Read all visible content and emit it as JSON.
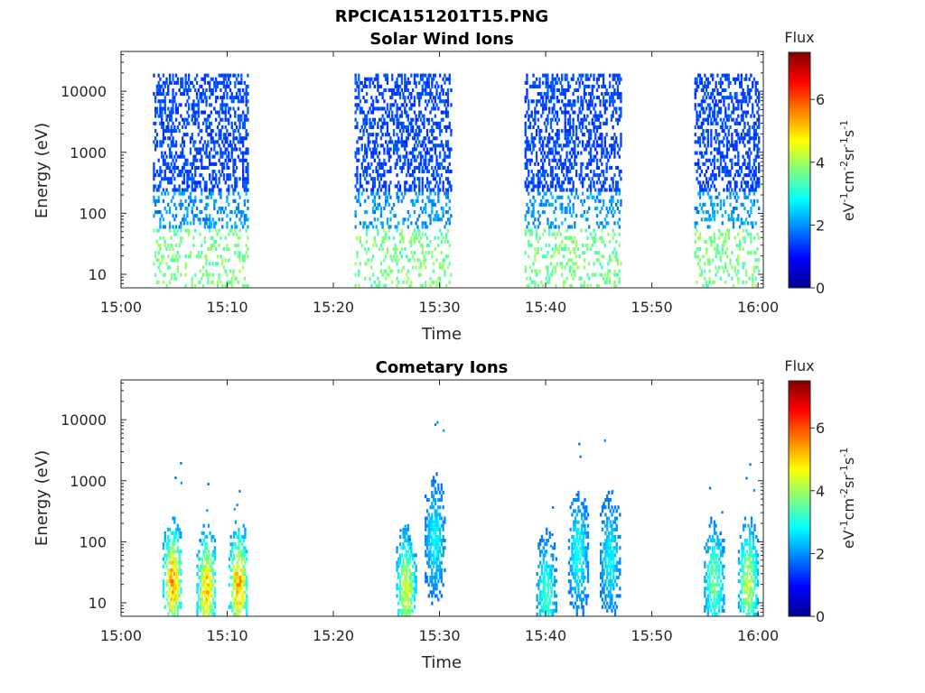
{
  "figure": {
    "title": "RPCICA151201T15.PNG"
  },
  "colorbar": {
    "label": "Flux",
    "units": "eV-1cm-2sr-1s-1",
    "range": [
      0,
      7.5
    ],
    "ticks": [
      "0",
      "2",
      "4",
      "6"
    ],
    "colormap": "jet"
  },
  "chart_data": [
    {
      "type": "heatmap",
      "title": "Solar Wind Ions",
      "xlabel": "Time",
      "ylabel": "Energy (eV)",
      "x_ticks": [
        "15:00",
        "15:10",
        "15:20",
        "15:30",
        "15:40",
        "15:50",
        "16:00"
      ],
      "xlim_minutes": [
        0,
        60.5
      ],
      "y_ticks": [
        "10",
        "100",
        "1000",
        "10000"
      ],
      "ylim": [
        6,
        45000
      ],
      "yscale": "log",
      "bursts": [
        {
          "start": "15:03",
          "end": "15:12"
        },
        {
          "start": "15:22",
          "end": "15:31"
        },
        {
          "start": "15:38",
          "end": "15:47"
        },
        {
          "start": "15:54",
          "end": "16:00"
        }
      ],
      "dominant_energy_range_eV": [
        200,
        15000
      ],
      "dominant_flux": 1.2,
      "low_energy_flux": 3.2
    },
    {
      "type": "heatmap",
      "title": "Cometary Ions",
      "xlabel": "Time",
      "ylabel": "Energy (eV)",
      "x_ticks": [
        "15:00",
        "15:10",
        "15:20",
        "15:30",
        "15:40",
        "15:50",
        "16:00"
      ],
      "xlim_minutes": [
        0,
        60.5
      ],
      "y_ticks": [
        "10",
        "100",
        "1000",
        "10000"
      ],
      "ylim": [
        6,
        45000
      ],
      "yscale": "log",
      "bursts": [
        {
          "center": "15:04.8",
          "peak_flux": 6.0,
          "peak_energy_eV": 20
        },
        {
          "center": "15:08.0",
          "peak_flux": 5.8,
          "peak_energy_eV": 15
        },
        {
          "center": "15:11.0",
          "peak_flux": 6.0,
          "peak_energy_eV": 18
        },
        {
          "center": "15:26.8",
          "peak_flux": 5.0,
          "peak_energy_eV": 15
        },
        {
          "center": "15:29.5",
          "peak_flux": 3.0,
          "peak_energy_eV": 100
        },
        {
          "center": "15:40.0",
          "peak_flux": 3.5,
          "peak_energy_eV": 12
        },
        {
          "center": "15:43.0",
          "peak_flux": 3.2,
          "peak_energy_eV": 60
        },
        {
          "center": "15:46.0",
          "peak_flux": 3.0,
          "peak_energy_eV": 50
        },
        {
          "center": "15:55.8",
          "peak_flux": 4.0,
          "peak_energy_eV": 20
        },
        {
          "center": "15:59.0",
          "peak_flux": 4.8,
          "peak_energy_eV": 20
        }
      ]
    }
  ]
}
